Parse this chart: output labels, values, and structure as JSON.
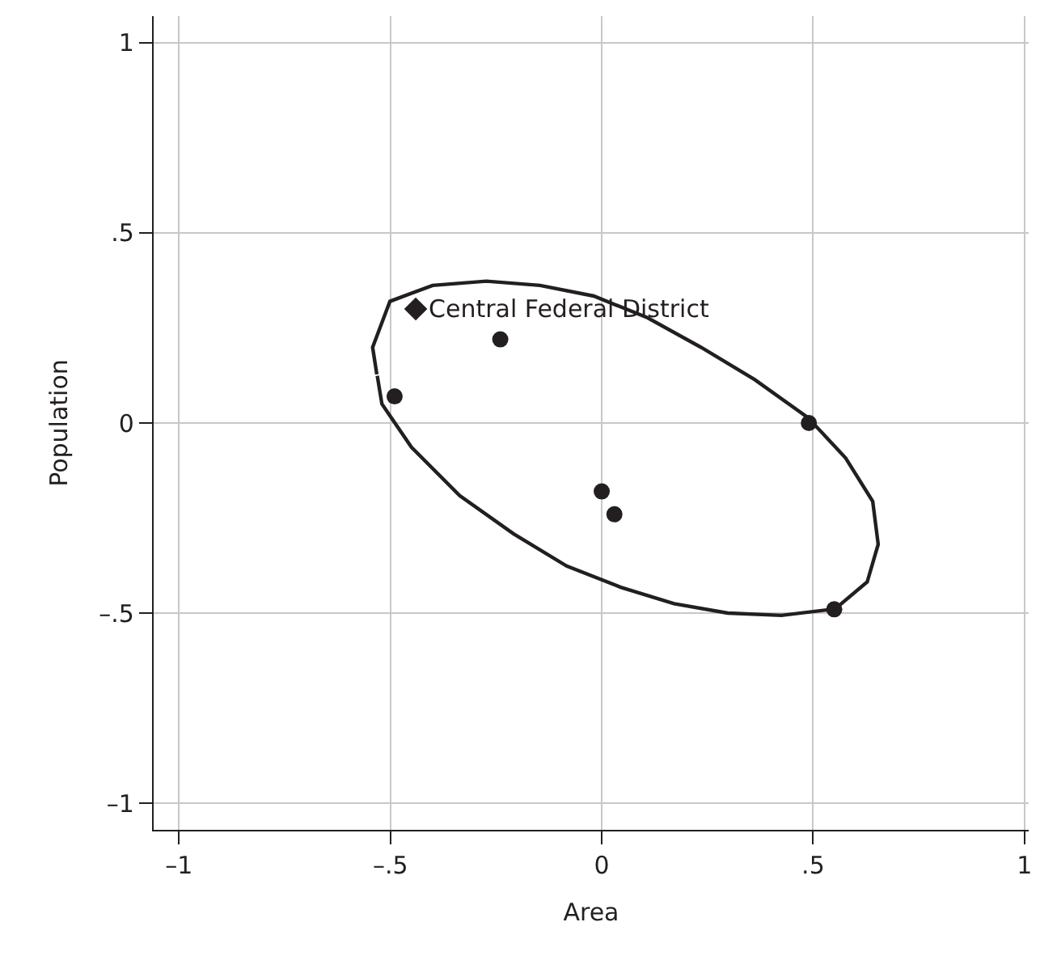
{
  "chart_data": {
    "type": "scatter",
    "xlabel": "Area",
    "ylabel": "Population",
    "xlim": [
      -1.06,
      1.01
    ],
    "ylim": [
      -1.07,
      1.07
    ],
    "xticks": [
      {
        "value": -1,
        "label": "–1"
      },
      {
        "value": -0.5,
        "label": "–.5"
      },
      0,
      {
        "value": 0.5,
        "label": ".5"
      },
      1
    ],
    "yticks": [
      {
        "value": -1,
        "label": "–1"
      },
      {
        "value": -0.5,
        "label": "–.5"
      },
      0,
      {
        "value": 0.5,
        "label": ".5"
      },
      1
    ],
    "grid": true,
    "annotations": [
      {
        "text": "Central Federal District",
        "x": -0.44,
        "y": 0.3
      }
    ],
    "series": [
      {
        "marker": "diamond",
        "color": "#231f20",
        "x": [
          -0.44
        ],
        "values": [
          0.3
        ]
      },
      {
        "marker": "circle",
        "color": "#231f20",
        "x": [
          -0.24,
          -0.49,
          0.49,
          0.0,
          0.03,
          0.55
        ],
        "values": [
          0.22,
          0.07,
          0.0,
          -0.18,
          -0.24,
          -0.49
        ]
      },
      {
        "type": "line",
        "marker": "none",
        "line_style": "solid",
        "color": "#231f20",
        "x": [
          -0.532,
          -0.542,
          -0.501,
          -0.4,
          -0.273,
          -0.146,
          -0.019,
          0.108,
          0.235,
          0.362,
          0.488,
          0.577,
          0.641,
          0.654,
          0.628,
          0.552,
          0.425,
          0.298,
          0.171,
          0.045,
          -0.083,
          -0.209,
          -0.336,
          -0.45,
          -0.52,
          -0.531
        ],
        "values": [
          0.128,
          0.199,
          0.32,
          0.362,
          0.373,
          0.362,
          0.334,
          0.277,
          0.199,
          0.114,
          0.014,
          -0.092,
          -0.206,
          -0.319,
          -0.418,
          -0.489,
          -0.506,
          -0.5,
          -0.475,
          -0.432,
          -0.376,
          -0.291,
          -0.191,
          -0.064,
          0.05,
          0.124
        ]
      }
    ]
  }
}
